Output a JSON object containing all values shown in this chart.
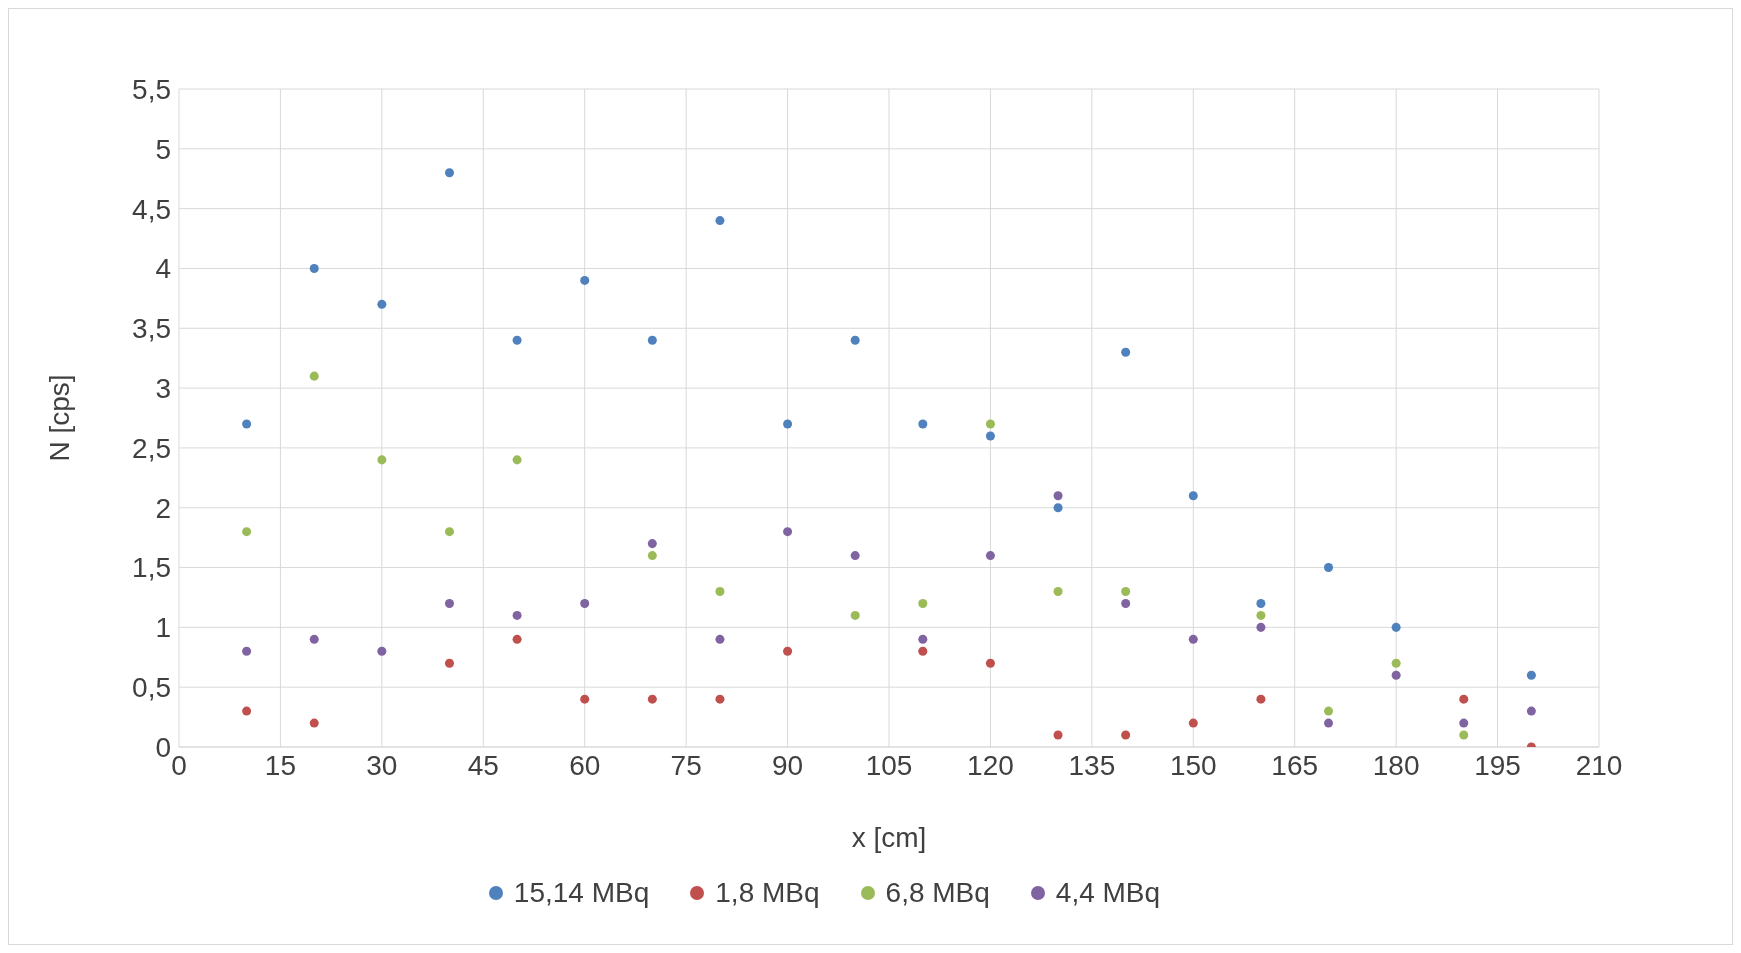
{
  "chart_data": {
    "type": "scatter",
    "xlabel": "x [cm]",
    "ylabel": "N [cps]",
    "x": [
      10,
      20,
      30,
      40,
      50,
      60,
      70,
      80,
      90,
      100,
      110,
      120,
      130,
      140,
      150,
      160,
      170,
      180,
      190,
      200
    ],
    "series": [
      {
        "name": "15,14 MBq",
        "color": "#4f81bd",
        "values": [
          2.7,
          4.0,
          3.7,
          4.8,
          3.4,
          3.9,
          3.4,
          4.4,
          2.7,
          3.4,
          2.7,
          2.6,
          2.0,
          3.3,
          2.1,
          1.2,
          1.5,
          1.0,
          null,
          0.6
        ]
      },
      {
        "name": "1,8 MBq",
        "color": "#c0504d",
        "values": [
          0.3,
          0.2,
          null,
          0.7,
          0.9,
          0.4,
          0.4,
          0.4,
          0.8,
          null,
          0.8,
          0.7,
          0.1,
          0.1,
          0.2,
          0.4,
          null,
          null,
          0.4,
          0.0
        ]
      },
      {
        "name": "6,8 MBq",
        "color": "#9bbb59",
        "values": [
          1.8,
          3.1,
          2.4,
          1.8,
          2.4,
          null,
          1.6,
          1.3,
          null,
          1.1,
          1.2,
          2.7,
          1.3,
          1.3,
          null,
          1.1,
          0.3,
          0.7,
          0.1,
          null
        ]
      },
      {
        "name": "4,4 MBq",
        "color": "#8064a2",
        "values": [
          0.8,
          0.9,
          0.8,
          1.2,
          1.1,
          1.2,
          1.7,
          0.9,
          1.8,
          1.6,
          0.9,
          1.6,
          2.1,
          1.2,
          0.9,
          1.0,
          0.2,
          0.6,
          0.2,
          0.3
        ]
      }
    ],
    "xlim": [
      0,
      210
    ],
    "xticks": [
      0,
      15,
      30,
      45,
      60,
      75,
      90,
      105,
      120,
      135,
      150,
      165,
      180,
      195,
      210
    ],
    "ylim": [
      0,
      5.5
    ],
    "yticks": [
      0,
      {
        "value": 0.5,
        "label": "0,5"
      },
      1,
      {
        "value": 1.5,
        "label": "1,5"
      },
      2,
      {
        "value": 2.5,
        "label": "2,5"
      },
      3,
      {
        "value": 3.5,
        "label": "3,5"
      },
      4,
      {
        "value": 4.5,
        "label": "4,5"
      },
      5,
      {
        "value": 5.5,
        "label": "5,5"
      }
    ],
    "grid": true,
    "legend": "bottom",
    "marker": "circle"
  }
}
